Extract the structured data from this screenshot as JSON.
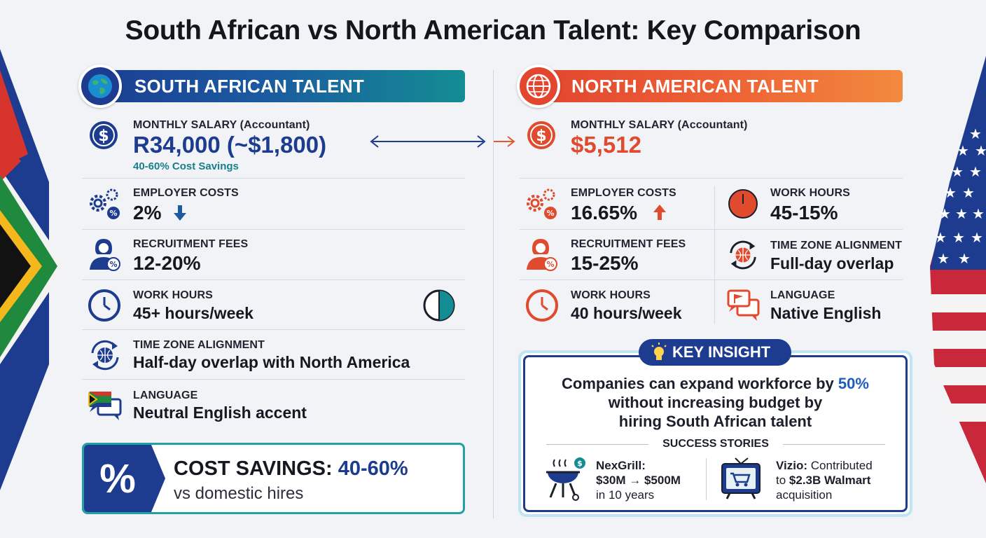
{
  "title": "South African vs North American Talent: Key Comparison",
  "south_africa": {
    "header": "SOUTH AFRICAN TALENT",
    "salary": {
      "label": "MONTHLY SALARY (Accountant)",
      "value": "R34,000 (~$1,800)",
      "note": "40-60% Cost Savings"
    },
    "employer_costs": {
      "label": "EMPLOYER COSTS",
      "value": "2%"
    },
    "recruitment_fees": {
      "label": "RECRUITMENT FEES",
      "value": "12-20%"
    },
    "work_hours": {
      "label": "WORK HOURS",
      "value": "45+ hours/week"
    },
    "time_zone": {
      "label": "TIME ZONE ALIGNMENT",
      "value": "Half-day overlap with North America"
    },
    "language": {
      "label": "LANGUAGE",
      "value": "Neutral English accent"
    }
  },
  "cost_savings": {
    "icon": "%",
    "title_prefix": "COST SAVINGS:",
    "title_value": "40-60%",
    "subtitle": "vs domestic hires"
  },
  "north_america": {
    "header": "NORTH AMERICAN TALENT",
    "salary": {
      "label": "MONTHLY SALARY (Accountant)",
      "value": "$5,512"
    },
    "employer_costs": {
      "label": "EMPLOYER COSTS",
      "value": "16.65%"
    },
    "recruitment_fees": {
      "label": "RECRUITMENT FEES",
      "value": "15-25%"
    },
    "work_hours": {
      "label": "WORK HOURS",
      "value": "40 hours/week"
    },
    "work_hours_right": {
      "label": "WORK HOURS",
      "value": "45-15%"
    },
    "time_zone": {
      "label": "TIME ZONE ALIGNMENT",
      "value": "Full-day overlap"
    },
    "language": {
      "label": "LANGUAGE",
      "value": "Native English"
    }
  },
  "key_insight": {
    "label": "KEY INSIGHT",
    "text_before": "Companies can expand workforce by",
    "text_highlight": "50%",
    "text_after": "without increasing budget by hiring South African talent",
    "success_title": "SUCCESS STORIES",
    "stories": [
      {
        "name": "NexGrill:",
        "line1": "$30M → $500M",
        "line2": "in 10 years"
      },
      {
        "name": "Vizio:",
        "line1_a": "Contributed",
        "line2_a": "to",
        "line2_b": "$2.3B Walmart",
        "line3": "acquisition"
      }
    ]
  },
  "colors": {
    "sa_blue": "#1d3c8f",
    "sa_teal": "#138d93",
    "na_orange": "#e04a2d",
    "up_arrow": "#e04a2d",
    "down_arrow": "#1d5aa0"
  }
}
